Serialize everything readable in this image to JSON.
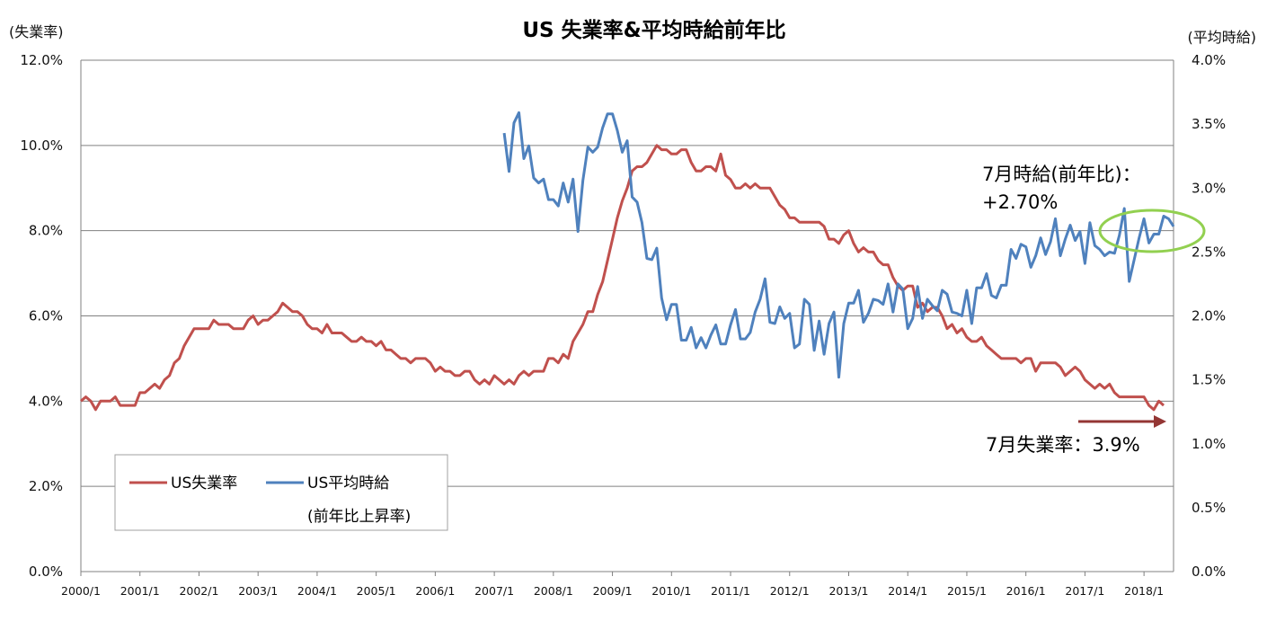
{
  "colors": {
    "unemployment": "#c0504d",
    "wages": "#4f81bd",
    "grid": "#808080",
    "highlight": "#92d050",
    "arrow": "#943634"
  },
  "chart_data": {
    "type": "line",
    "title": "US 失業率&平均時給前年比",
    "ylabel_left": "(失業率)",
    "ylabel_right": "(平均時給)",
    "ylim_left": [
      0,
      12
    ],
    "ylim_right": [
      0,
      4
    ],
    "left_ticks": [
      "0.0%",
      "2.0%",
      "4.0%",
      "6.0%",
      "8.0%",
      "10.0%",
      "12.0%"
    ],
    "right_ticks": [
      "0.0%",
      "0.5%",
      "1.0%",
      "1.5%",
      "2.0%",
      "2.5%",
      "3.0%",
      "3.5%",
      "4.0%"
    ],
    "x_ticks": [
      "2000/1",
      "2001/1",
      "2002/1",
      "2003/1",
      "2004/1",
      "2005/1",
      "2006/1",
      "2007/1",
      "2008/1",
      "2009/1",
      "2010/1",
      "2011/1",
      "2012/1",
      "2013/1",
      "2014/1",
      "2015/1",
      "2016/1",
      "2017/1",
      "2018/1"
    ],
    "x_start": "2000/1",
    "x_end": "2018/7",
    "grid": true,
    "legend_position": "bottom-left",
    "series": [
      {
        "name": "US失業率",
        "axis": "left",
        "start": "2000/1",
        "values": [
          4.0,
          4.1,
          4.0,
          3.8,
          4.0,
          4.0,
          4.0,
          4.1,
          3.9,
          3.9,
          3.9,
          3.9,
          4.2,
          4.2,
          4.3,
          4.4,
          4.3,
          4.5,
          4.6,
          4.9,
          5.0,
          5.3,
          5.5,
          5.7,
          5.7,
          5.7,
          5.7,
          5.9,
          5.8,
          5.8,
          5.8,
          5.7,
          5.7,
          5.7,
          5.9,
          6.0,
          5.8,
          5.9,
          5.9,
          6.0,
          6.1,
          6.3,
          6.2,
          6.1,
          6.1,
          6.0,
          5.8,
          5.7,
          5.7,
          5.6,
          5.8,
          5.6,
          5.6,
          5.6,
          5.5,
          5.4,
          5.4,
          5.5,
          5.4,
          5.4,
          5.3,
          5.4,
          5.2,
          5.2,
          5.1,
          5.0,
          5.0,
          4.9,
          5.0,
          5.0,
          5.0,
          4.9,
          4.7,
          4.8,
          4.7,
          4.7,
          4.6,
          4.6,
          4.7,
          4.7,
          4.5,
          4.4,
          4.5,
          4.4,
          4.6,
          4.5,
          4.4,
          4.5,
          4.4,
          4.6,
          4.7,
          4.6,
          4.7,
          4.7,
          4.7,
          5.0,
          5.0,
          4.9,
          5.1,
          5.0,
          5.4,
          5.6,
          5.8,
          6.1,
          6.1,
          6.5,
          6.8,
          7.3,
          7.8,
          8.3,
          8.7,
          9.0,
          9.4,
          9.5,
          9.5,
          9.6,
          9.8,
          10.0,
          9.9,
          9.9,
          9.8,
          9.8,
          9.9,
          9.9,
          9.6,
          9.4,
          9.4,
          9.5,
          9.5,
          9.4,
          9.8,
          9.3,
          9.2,
          9.0,
          9.0,
          9.1,
          9.0,
          9.1,
          9.0,
          9.0,
          9.0,
          8.8,
          8.6,
          8.5,
          8.3,
          8.3,
          8.2,
          8.2,
          8.2,
          8.2,
          8.2,
          8.1,
          7.8,
          7.8,
          7.7,
          7.9,
          8.0,
          7.7,
          7.5,
          7.6,
          7.5,
          7.5,
          7.3,
          7.2,
          7.2,
          6.9,
          6.7,
          6.6,
          6.7,
          6.7,
          6.2,
          6.3,
          6.1,
          6.2,
          6.2,
          6.0,
          5.7,
          5.8,
          5.6,
          5.7,
          5.5,
          5.4,
          5.4,
          5.5,
          5.3,
          5.2,
          5.1,
          5.0,
          5.0,
          5.0,
          5.0,
          4.9,
          5.0,
          5.0,
          4.7,
          4.9,
          4.9,
          4.9,
          4.9,
          4.8,
          4.6,
          4.7,
          4.8,
          4.7,
          4.5,
          4.4,
          4.3,
          4.4,
          4.3,
          4.4,
          4.2,
          4.1,
          4.1,
          4.1,
          4.1,
          4.1,
          4.1,
          3.9,
          3.8,
          4.0,
          3.9
        ]
      },
      {
        "name": "US平均時給",
        "name_line2": "(前年比上昇率)",
        "axis": "right",
        "start": "2007/3",
        "values": [
          3.43,
          3.13,
          3.51,
          3.59,
          3.23,
          3.33,
          3.08,
          3.04,
          3.07,
          2.91,
          2.91,
          2.86,
          3.04,
          2.89,
          3.07,
          2.66,
          3.06,
          3.32,
          3.28,
          3.32,
          3.47,
          3.58,
          3.58,
          3.45,
          3.28,
          3.37,
          2.93,
          2.89,
          2.73,
          2.45,
          2.44,
          2.53,
          2.14,
          1.97,
          2.09,
          2.09,
          1.81,
          1.81,
          1.91,
          1.75,
          1.83,
          1.75,
          1.85,
          1.93,
          1.78,
          1.78,
          1.93,
          2.05,
          1.82,
          1.82,
          1.87,
          2.03,
          2.13,
          2.29,
          1.95,
          1.94,
          2.07,
          1.98,
          2.02,
          1.75,
          1.78,
          2.13,
          2.09,
          1.73,
          1.96,
          1.7,
          1.94,
          2.03,
          1.52,
          1.94,
          2.1,
          2.1,
          2.2,
          1.95,
          2.02,
          2.13,
          2.12,
          2.09,
          2.25,
          2.03,
          2.25,
          2.21,
          1.9,
          1.98,
          2.23,
          1.98,
          2.13,
          2.08,
          2.04,
          2.2,
          2.17,
          2.03,
          2.02,
          2.0,
          2.2,
          1.94,
          2.22,
          2.22,
          2.33,
          2.16,
          2.14,
          2.24,
          2.24,
          2.52,
          2.45,
          2.56,
          2.54,
          2.38,
          2.47,
          2.61,
          2.48,
          2.58,
          2.76,
          2.47,
          2.6,
          2.71,
          2.59,
          2.66,
          2.41,
          2.73,
          2.55,
          2.52,
          2.47,
          2.5,
          2.49,
          2.63,
          2.84,
          2.27,
          2.44,
          2.61,
          2.76,
          2.57,
          2.64,
          2.64,
          2.78,
          2.76,
          2.7
        ]
      }
    ],
    "annotations": {
      "wage_label_line1": "7月時給(前年比)：",
      "wage_label_line2": "+2.70%",
      "unemployment_label": "7月失業率：3.9%"
    }
  }
}
